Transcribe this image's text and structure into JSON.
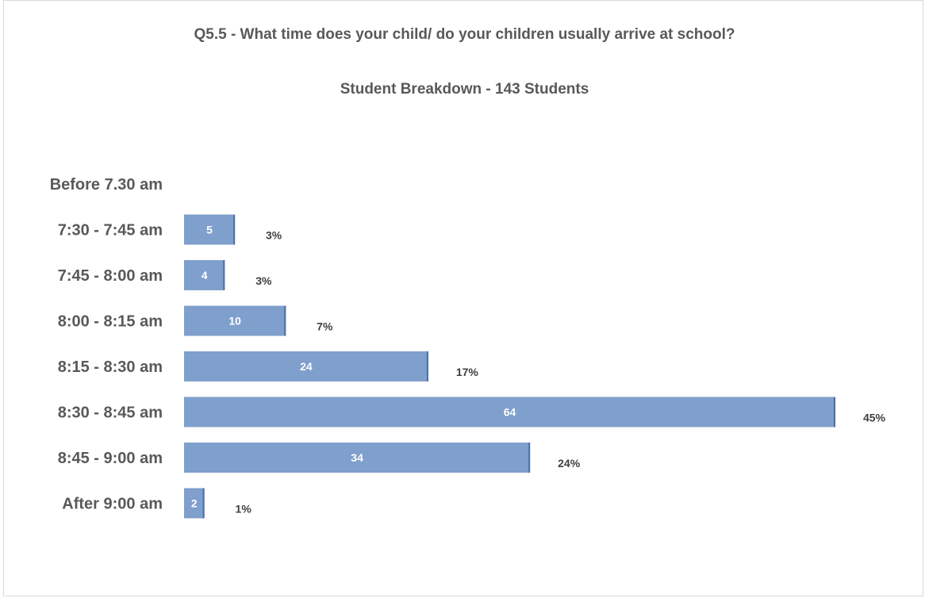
{
  "chart_data": {
    "type": "bar",
    "orientation": "horizontal",
    "title": "Q5.5 - What time does your child/ do your children usually arrive at school?",
    "subtitle": "Student Breakdown - 143 Students",
    "categories": [
      "Before 7.30 am",
      "7:30 - 7:45 am",
      "7:45 - 8:00 am",
      "8:00 - 8:15 am",
      "8:15 - 8:30 am",
      "8:30 - 8:45 am",
      "8:45 - 9:00 am",
      "After 9:00 am"
    ],
    "values": [
      0,
      5,
      4,
      10,
      24,
      64,
      34,
      2
    ],
    "percent_labels": [
      "",
      "3%",
      "3%",
      "7%",
      "17%",
      "45%",
      "24%",
      "1%"
    ],
    "value_labels": [
      "",
      "5",
      "4",
      "10",
      "24",
      "64",
      "34",
      "2"
    ],
    "xlim": [
      0,
      64
    ],
    "grid": false,
    "legend": "none",
    "colors": {
      "bar": "#7f9fcc",
      "bar_edge": "#4a6fa8",
      "text": "#595959"
    }
  }
}
